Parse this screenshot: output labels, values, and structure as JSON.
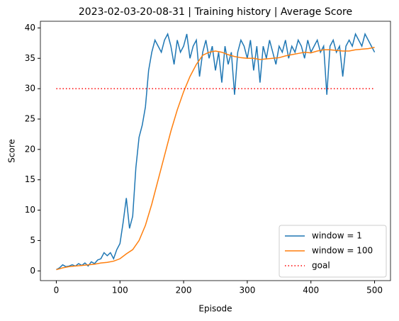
{
  "chart_data": {
    "type": "line",
    "title": "2023-02-03-20-08-31 | Training history | Average Score",
    "xlabel": "Episode",
    "ylabel": "Score",
    "xlim": [
      -25,
      525
    ],
    "xticks": [
      0,
      100,
      200,
      300,
      400,
      500
    ],
    "ylim": [
      -1.6,
      41.1
    ],
    "yticks": [
      0,
      5,
      10,
      15,
      20,
      25,
      30,
      35,
      40
    ],
    "legend": "lower right",
    "series": [
      {
        "name": "window = 1",
        "color": "#1f77b4",
        "linestyle": "solid",
        "x": [
          0,
          5,
          10,
          15,
          20,
          25,
          30,
          35,
          40,
          45,
          50,
          55,
          60,
          65,
          70,
          75,
          80,
          85,
          90,
          95,
          100,
          105,
          110,
          115,
          120,
          125,
          130,
          135,
          140,
          145,
          150,
          155,
          160,
          165,
          170,
          175,
          180,
          185,
          190,
          195,
          200,
          205,
          210,
          215,
          220,
          225,
          230,
          235,
          240,
          245,
          250,
          255,
          260,
          265,
          270,
          275,
          280,
          285,
          290,
          295,
          300,
          305,
          310,
          315,
          320,
          325,
          330,
          335,
          340,
          345,
          350,
          355,
          360,
          365,
          370,
          375,
          380,
          385,
          390,
          395,
          400,
          405,
          410,
          415,
          420,
          425,
          430,
          435,
          440,
          445,
          450,
          455,
          460,
          465,
          470,
          475,
          480,
          485,
          490,
          495,
          500
        ],
        "values": [
          0.2,
          0.5,
          1.0,
          0.7,
          0.8,
          1.0,
          0.8,
          1.2,
          0.9,
          1.3,
          0.8,
          1.5,
          1.2,
          1.8,
          2.0,
          3.0,
          2.5,
          3.0,
          2.0,
          3.5,
          4.5,
          8,
          12,
          7,
          9,
          17,
          22,
          24,
          27,
          33,
          36,
          38,
          37,
          36,
          38,
          39,
          37,
          34,
          38,
          36,
          37,
          39,
          35,
          37,
          38,
          32,
          36,
          38,
          35,
          37,
          33,
          36,
          31,
          37,
          34,
          36,
          29,
          36,
          38,
          37,
          35,
          38,
          33,
          37,
          31,
          37,
          35,
          38,
          36,
          34,
          37,
          36,
          38,
          35,
          37,
          36,
          38,
          37,
          35,
          38,
          36,
          37,
          38,
          36,
          37,
          29,
          37,
          38,
          36,
          37,
          32,
          37,
          38,
          37,
          39,
          38,
          37,
          39,
          38,
          37,
          36
        ]
      },
      {
        "name": "window = 100",
        "color": "#ff7f0e",
        "linestyle": "solid",
        "x": [
          0,
          10,
          20,
          30,
          40,
          50,
          60,
          70,
          80,
          90,
          100,
          110,
          120,
          130,
          140,
          150,
          160,
          170,
          180,
          190,
          200,
          210,
          220,
          230,
          240,
          250,
          260,
          270,
          280,
          290,
          300,
          310,
          320,
          330,
          340,
          350,
          360,
          370,
          380,
          390,
          400,
          410,
          420,
          430,
          440,
          450,
          460,
          470,
          480,
          490,
          500
        ],
        "values": [
          0.2,
          0.5,
          0.7,
          0.8,
          0.9,
          1.0,
          1.1,
          1.3,
          1.4,
          1.6,
          2.0,
          2.8,
          3.5,
          5,
          7.5,
          11,
          15,
          19,
          23,
          26.5,
          29.5,
          32,
          34,
          35.5,
          36,
          36.2,
          36,
          35.6,
          35.3,
          35.1,
          35,
          35,
          34.8,
          34.9,
          35,
          35.1,
          35.4,
          35.6,
          35.8,
          36,
          35.9,
          36.2,
          36.4,
          36.4,
          36.3,
          36.2,
          36.2,
          36.4,
          36.5,
          36.6,
          36.8
        ]
      },
      {
        "name": "goal",
        "color": "#ff0000",
        "linestyle": "dotted",
        "x": [
          0,
          500
        ],
        "values": [
          30,
          30
        ]
      }
    ]
  }
}
